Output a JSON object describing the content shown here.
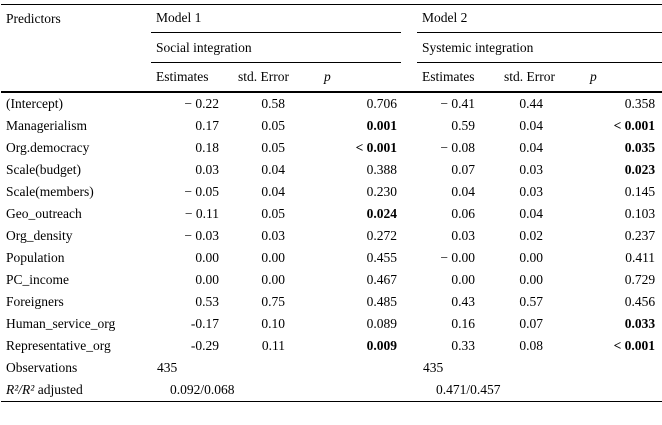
{
  "table": {
    "predictors_header": "Predictors",
    "model1": {
      "name": "Model 1",
      "subtitle": "Social integration"
    },
    "model2": {
      "name": "Model 2",
      "subtitle": "Systemic integration"
    },
    "columns": {
      "estimates": "Estimates",
      "std_error": "std. Error",
      "p": "p"
    },
    "rows": [
      {
        "predictor": "(Intercept)",
        "m1": {
          "est": "− 0.22",
          "se": "0.58",
          "p": "0.706",
          "p_bold": false
        },
        "m2": {
          "est": "− 0.41",
          "se": "0.44",
          "p": "0.358",
          "p_bold": false
        }
      },
      {
        "predictor": "Managerialism",
        "m1": {
          "est": "0.17",
          "se": "0.05",
          "p": "0.001",
          "p_bold": true
        },
        "m2": {
          "est": "0.59",
          "se": "0.04",
          "p": "< 0.001",
          "p_bold": true
        }
      },
      {
        "predictor": "Org.democracy",
        "m1": {
          "est": "0.18",
          "se": "0.05",
          "p": "< 0.001",
          "p_bold": true
        },
        "m2": {
          "est": "− 0.08",
          "se": "0.04",
          "p": "0.035",
          "p_bold": true
        }
      },
      {
        "predictor": "Scale(budget)",
        "m1": {
          "est": "0.03",
          "se": "0.04",
          "p": "0.388",
          "p_bold": false
        },
        "m2": {
          "est": "0.07",
          "se": "0.03",
          "p": "0.023",
          "p_bold": true
        }
      },
      {
        "predictor": "Scale(members)",
        "m1": {
          "est": "− 0.05",
          "se": "0.04",
          "p": "0.230",
          "p_bold": false
        },
        "m2": {
          "est": "0.04",
          "se": "0.03",
          "p": "0.145",
          "p_bold": false
        }
      },
      {
        "predictor": "Geo_outreach",
        "m1": {
          "est": "− 0.11",
          "se": "0.05",
          "p": "0.024",
          "p_bold": true
        },
        "m2": {
          "est": "0.06",
          "se": "0.04",
          "p": "0.103",
          "p_bold": false
        }
      },
      {
        "predictor": "Org_density",
        "m1": {
          "est": "− 0.03",
          "se": "0.03",
          "p": "0.272",
          "p_bold": false
        },
        "m2": {
          "est": "0.03",
          "se": "0.02",
          "p": "0.237",
          "p_bold": false
        }
      },
      {
        "predictor": "Population",
        "m1": {
          "est": "0.00",
          "se": "0.00",
          "p": "0.455",
          "p_bold": false
        },
        "m2": {
          "est": "− 0.00",
          "se": "0.00",
          "p": "0.411",
          "p_bold": false
        }
      },
      {
        "predictor": "PC_income",
        "m1": {
          "est": "0.00",
          "se": "0.00",
          "p": "0.467",
          "p_bold": false
        },
        "m2": {
          "est": "0.00",
          "se": "0.00",
          "p": "0.729",
          "p_bold": false
        }
      },
      {
        "predictor": "Foreigners",
        "m1": {
          "est": "0.53",
          "se": "0.75",
          "p": "0.485",
          "p_bold": false
        },
        "m2": {
          "est": "0.43",
          "se": "0.57",
          "p": "0.456",
          "p_bold": false
        }
      },
      {
        "predictor": "Human_service_org",
        "m1": {
          "est": "-0.17",
          "se": "0.10",
          "p": "0.089",
          "p_bold": false
        },
        "m2": {
          "est": "0.16",
          "se": "0.07",
          "p": "0.033",
          "p_bold": true
        }
      },
      {
        "predictor": "Representative_org",
        "m1": {
          "est": "-0.29",
          "se": "0.11",
          "p": "0.009",
          "p_bold": true
        },
        "m2": {
          "est": "0.33",
          "se": "0.08",
          "p": "< 0.001",
          "p_bold": true
        }
      }
    ],
    "observations": {
      "label": "Observations",
      "m1": "435",
      "m2": "435"
    },
    "r2": {
      "label_math": "R²/R²",
      "label_text": " adjusted",
      "m1": "0.092/0.068",
      "m2": "0.471/0.457"
    }
  }
}
